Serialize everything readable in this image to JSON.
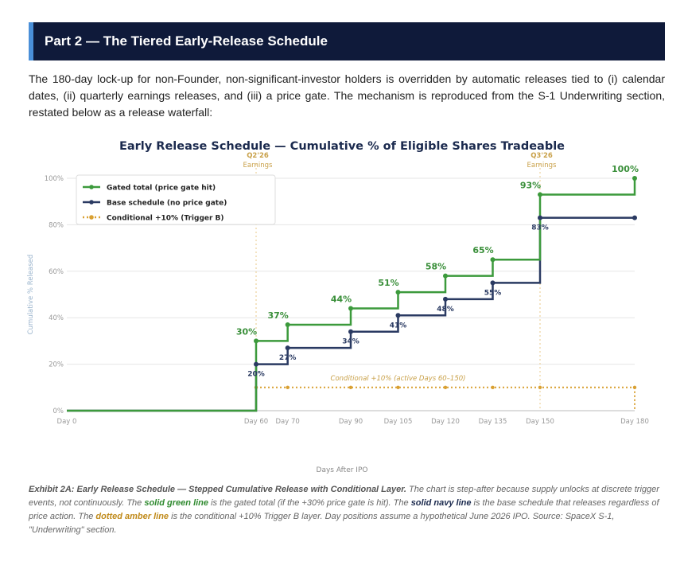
{
  "header": {
    "title": "Part 2 — The Tiered Early-Release Schedule"
  },
  "intro": {
    "text": "The 180-day lock-up for non-Founder, non-significant-investor holders is overridden by automatic releases tied to (i) calendar dates, (ii) quarterly earnings releases, and (iii) a price gate. The mechanism is reproduced from the S-1 Underwriting section, restated below as a release waterfall:"
  },
  "chart_data": {
    "type": "line",
    "step": "after",
    "title": "Early Release Schedule — Cumulative % of Eligible Shares Tradeable",
    "xlabel": "Days After IPO",
    "ylabel": "Cumulative % Released",
    "xlim": [
      0,
      180
    ],
    "ylim": [
      0,
      100
    ],
    "x_ticks": [
      {
        "x": 0,
        "label": "Day 0"
      },
      {
        "x": 60,
        "label": "Day 60"
      },
      {
        "x": 70,
        "label": "Day 70"
      },
      {
        "x": 90,
        "label": "Day 90"
      },
      {
        "x": 105,
        "label": "Day 105"
      },
      {
        "x": 120,
        "label": "Day 120"
      },
      {
        "x": 135,
        "label": "Day 135"
      },
      {
        "x": 150,
        "label": "Day 150"
      },
      {
        "x": 180,
        "label": "Day 180"
      }
    ],
    "y_ticks": [
      {
        "y": 0,
        "label": "0%"
      },
      {
        "y": 20,
        "label": "20%"
      },
      {
        "y": 40,
        "label": "40%"
      },
      {
        "y": 60,
        "label": "60%"
      },
      {
        "y": 80,
        "label": "80%"
      },
      {
        "y": 100,
        "label": "100%"
      }
    ],
    "grid": true,
    "legend_position": "top-left",
    "series": [
      {
        "name": "Gated total (price gate hit)",
        "color": "#3c9a3c",
        "style": "solid",
        "x": [
          0,
          60,
          70,
          90,
          105,
          120,
          135,
          150,
          180
        ],
        "y": [
          0,
          30,
          37,
          44,
          51,
          58,
          65,
          93,
          100
        ],
        "labels": [
          "",
          "30%",
          "37%",
          "44%",
          "51%",
          "58%",
          "65%",
          "93%",
          "100%"
        ]
      },
      {
        "name": "Base schedule (no price gate)",
        "color": "#2a3a62",
        "style": "solid",
        "x": [
          0,
          60,
          70,
          90,
          105,
          120,
          135,
          150,
          180
        ],
        "y": [
          0,
          20,
          27,
          34,
          41,
          48,
          55,
          83,
          83
        ],
        "labels": [
          "",
          "20%",
          "27%",
          "34%",
          "41%",
          "48%",
          "55%",
          "83%",
          ""
        ]
      },
      {
        "name": "Conditional +10% (Trigger B)",
        "color": "#d9a032",
        "style": "dotted",
        "x": [
          60,
          70,
          90,
          105,
          120,
          135,
          150,
          180
        ],
        "y": [
          10,
          10,
          10,
          10,
          10,
          10,
          10,
          10
        ],
        "labels": []
      }
    ],
    "vlines": [
      {
        "x": 60,
        "label": "Q2'26",
        "sublabel": "Earnings"
      },
      {
        "x": 150,
        "label": "Q3'26",
        "sublabel": "Earnings"
      }
    ],
    "annotations": [
      {
        "text": "Conditional +10% (active Days 60–150)",
        "x": 105,
        "y": 10
      }
    ]
  },
  "caption": {
    "label": "Exhibit 2A: Early Release Schedule — Stepped Cumulative Release with Conditional Layer.",
    "text1": " The chart is step-after because supply unlocks at discrete trigger events, not continuously. The ",
    "green": "solid green line",
    "text2": " is the gated total (if the +30% price gate is hit). The ",
    "navy": "solid navy line",
    "text3": " is the base schedule that releases regardless of price action. The ",
    "amber": "dotted amber line",
    "text4": " is the conditional +10% Trigger B layer. Day positions assume a hypothetical June 2026 IPO. Source: SpaceX S-1, \"Underwriting\" section."
  }
}
